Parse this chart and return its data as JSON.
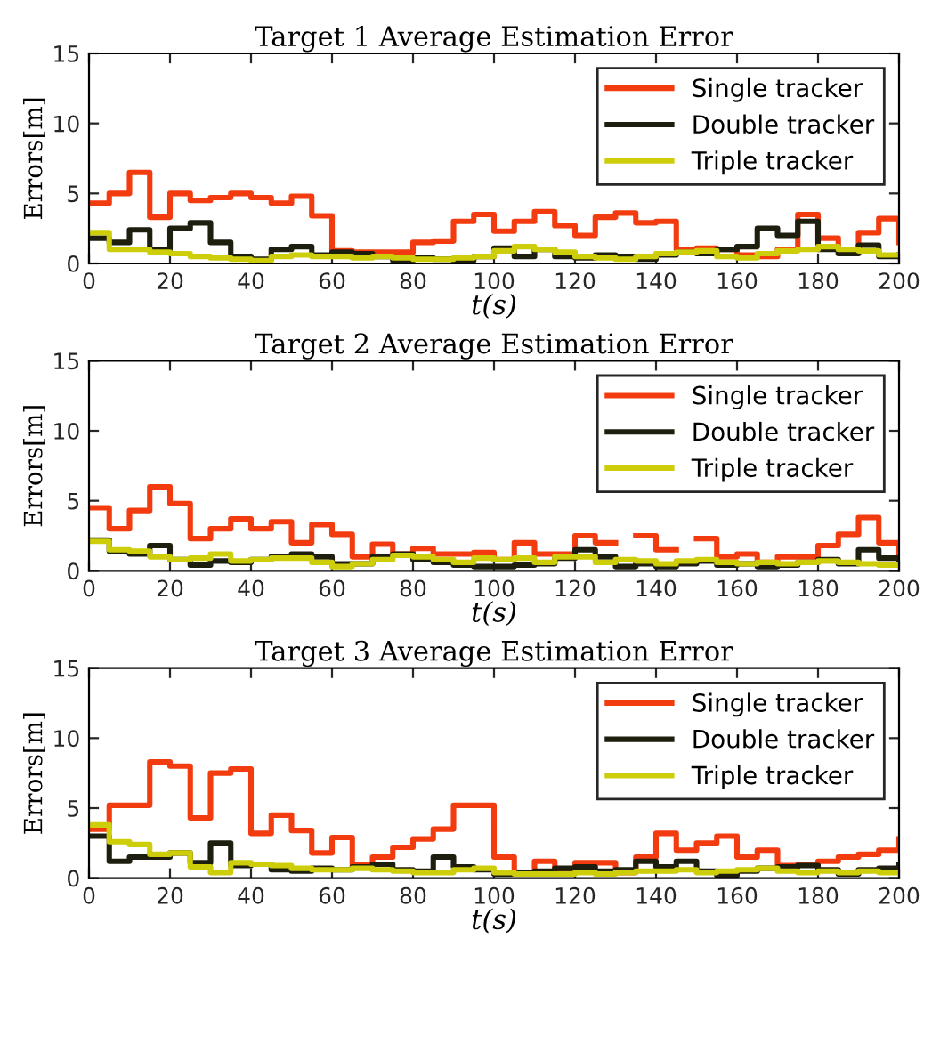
{
  "chart_data": [
    {
      "type": "step",
      "title": "Target 1 Average Estimation Error",
      "xlabel": "t(s)",
      "ylabel": "Errors[m]",
      "x": [
        0,
        5,
        10,
        15,
        20,
        25,
        30,
        35,
        40,
        45,
        50,
        55,
        60,
        65,
        70,
        75,
        80,
        85,
        90,
        95,
        100,
        105,
        110,
        115,
        120,
        125,
        130,
        135,
        140,
        145,
        150,
        155,
        160,
        165,
        170,
        175,
        180,
        185,
        190,
        195,
        200
      ],
      "xlim": [
        0,
        200
      ],
      "ylim": [
        0,
        15
      ],
      "xticks": [
        0,
        20,
        40,
        60,
        80,
        100,
        120,
        140,
        160,
        180,
        200
      ],
      "yticks": [
        0,
        5,
        10,
        15
      ],
      "legend": "top right",
      "grid": false,
      "series": [
        {
          "name": "Single tracker",
          "color": "#f23c0f",
          "values": [
            4.3,
            5.0,
            6.5,
            3.3,
            5.0,
            4.5,
            4.7,
            5.0,
            4.7,
            4.3,
            4.8,
            3.4,
            0.9,
            0.8,
            0.8,
            0.8,
            1.5,
            1.6,
            3.0,
            3.5,
            2.3,
            3.0,
            3.7,
            2.7,
            2.0,
            3.3,
            3.6,
            2.9,
            3.0,
            1.0,
            1.1,
            1.0,
            0.6,
            0.5,
            1.0,
            3.5,
            1.8,
            0.8,
            2.2,
            3.2,
            1.5
          ]
        },
        {
          "name": "Double tracker",
          "color": "#1e1e0f",
          "values": [
            1.8,
            1.5,
            2.4,
            1.0,
            2.5,
            2.9,
            1.5,
            0.5,
            0.3,
            1.0,
            1.2,
            0.6,
            0.8,
            0.7,
            0.5,
            0.2,
            0.4,
            0.3,
            0.2,
            0.5,
            1.1,
            0.5,
            1.0,
            0.5,
            0.4,
            0.6,
            0.5,
            0.3,
            0.6,
            0.8,
            0.7,
            1.0,
            1.2,
            2.5,
            2.0,
            3.0,
            1.0,
            0.7,
            1.3,
            0.5,
            0.6
          ]
        },
        {
          "name": "Triple tracker",
          "color": "#cdcd0a",
          "values": [
            2.2,
            1.0,
            1.0,
            0.8,
            0.7,
            0.5,
            0.4,
            0.3,
            0.2,
            0.5,
            0.6,
            0.5,
            0.5,
            0.4,
            0.5,
            0.4,
            0.3,
            0.3,
            0.4,
            0.5,
            0.9,
            1.2,
            1.0,
            0.8,
            0.5,
            0.4,
            0.3,
            0.5,
            0.7,
            0.8,
            0.9,
            0.5,
            0.4,
            0.7,
            0.9,
            1.0,
            1.2,
            1.0,
            0.9,
            0.6,
            0.6
          ]
        }
      ]
    },
    {
      "type": "step",
      "title": "Target 2 Average Estimation Error",
      "xlabel": "t(s)",
      "ylabel": "Errors[m]",
      "x": [
        0,
        5,
        10,
        15,
        20,
        25,
        30,
        35,
        40,
        45,
        50,
        55,
        60,
        65,
        70,
        75,
        80,
        85,
        90,
        95,
        100,
        105,
        110,
        115,
        120,
        125,
        130,
        135,
        140,
        145,
        150,
        155,
        160,
        165,
        170,
        175,
        180,
        185,
        190,
        195,
        200
      ],
      "xlim": [
        0,
        200
      ],
      "ylim": [
        0,
        15
      ],
      "xticks": [
        0,
        20,
        40,
        60,
        80,
        100,
        120,
        140,
        160,
        180,
        200
      ],
      "yticks": [
        0,
        5,
        10,
        15
      ],
      "legend": "top right",
      "grid": false,
      "series": [
        {
          "name": "Single tracker",
          "color": "#f23c0f",
          "values": [
            4.5,
            3.0,
            4.3,
            6.0,
            4.8,
            2.3,
            3.0,
            3.7,
            3.0,
            3.5,
            2.0,
            3.3,
            2.6,
            1.0,
            1.9,
            1.2,
            1.6,
            1.2,
            1.2,
            1.3,
            0.8,
            2.0,
            1.2,
            1.2,
            2.5,
            2.0,
            null,
            2.5,
            1.5,
            null,
            2.3,
            1.0,
            1.2,
            0.6,
            1.0,
            1.0,
            1.8,
            2.6,
            3.8,
            2.0,
            0.7
          ]
        },
        {
          "name": "Double tracker",
          "color": "#1e1e0f",
          "values": [
            2.2,
            1.4,
            1.2,
            1.8,
            0.8,
            0.4,
            0.7,
            0.6,
            0.8,
            1.0,
            1.2,
            1.0,
            0.5,
            0.5,
            1.0,
            1.2,
            0.8,
            0.6,
            0.4,
            0.3,
            0.3,
            0.4,
            0.5,
            0.9,
            1.5,
            1.0,
            0.3,
            0.5,
            0.3,
            0.5,
            0.7,
            0.4,
            0.5,
            0.3,
            0.4,
            0.6,
            0.8,
            0.5,
            1.5,
            0.9,
            0.5
          ]
        },
        {
          "name": "Triple tracker",
          "color": "#cdcd0a",
          "values": [
            2.1,
            1.5,
            1.4,
            1.0,
            0.8,
            0.9,
            1.2,
            0.7,
            0.8,
            0.9,
            0.9,
            0.6,
            0.3,
            0.5,
            0.8,
            1.1,
            1.0,
            0.8,
            0.6,
            0.9,
            0.8,
            0.9,
            0.6,
            1.0,
            1.0,
            0.6,
            0.8,
            0.7,
            0.5,
            0.7,
            0.8,
            0.6,
            0.5,
            0.6,
            0.5,
            0.6,
            0.7,
            0.6,
            0.5,
            0.4,
            0.4
          ]
        }
      ]
    },
    {
      "type": "step",
      "title": "Target 3 Average Estimation Error",
      "xlabel": "t(s)",
      "ylabel": "Errors[m]",
      "x": [
        0,
        5,
        10,
        15,
        20,
        25,
        30,
        35,
        40,
        45,
        50,
        55,
        60,
        65,
        70,
        75,
        80,
        85,
        90,
        95,
        100,
        105,
        110,
        115,
        120,
        125,
        130,
        135,
        140,
        145,
        150,
        155,
        160,
        165,
        170,
        175,
        180,
        185,
        190,
        195,
        200
      ],
      "xlim": [
        0,
        200
      ],
      "ylim": [
        0,
        15
      ],
      "xticks": [
        0,
        20,
        40,
        60,
        80,
        100,
        120,
        140,
        160,
        180,
        200
      ],
      "yticks": [
        0,
        5,
        10,
        15
      ],
      "legend": "top right",
      "grid": false,
      "series": [
        {
          "name": "Single tracker",
          "color": "#f23c0f",
          "values": [
            3.5,
            5.2,
            5.2,
            8.3,
            8.0,
            4.3,
            7.5,
            7.8,
            3.2,
            4.5,
            3.4,
            1.8,
            2.9,
            1.0,
            1.5,
            2.2,
            2.8,
            3.5,
            5.2,
            5.2,
            1.5,
            0.3,
            1.2,
            0.5,
            1.1,
            1.1,
            0.4,
            1.5,
            3.2,
            2.0,
            2.5,
            3.0,
            1.5,
            2.0,
            0.9,
            1.0,
            1.2,
            1.5,
            1.7,
            2.0,
            2.8
          ]
        },
        {
          "name": "Double tracker",
          "color": "#1e1e0f",
          "values": [
            3.0,
            1.2,
            1.5,
            1.5,
            1.8,
            1.1,
            2.5,
            0.9,
            1.0,
            0.6,
            0.5,
            0.7,
            0.6,
            0.8,
            1.0,
            0.6,
            0.5,
            1.5,
            0.8,
            0.6,
            0.3,
            0.4,
            0.5,
            0.7,
            0.8,
            0.5,
            0.6,
            1.2,
            0.8,
            1.2,
            0.5,
            0.2,
            0.5,
            0.7,
            0.8,
            0.9,
            0.6,
            0.3,
            0.6,
            0.7,
            1.0
          ]
        },
        {
          "name": "Triple tracker",
          "color": "#cdcd0a",
          "values": [
            3.8,
            2.6,
            2.4,
            1.7,
            1.8,
            0.8,
            0.4,
            1.1,
            1.0,
            0.9,
            0.7,
            0.6,
            0.6,
            0.7,
            0.6,
            0.5,
            0.4,
            0.4,
            0.6,
            0.7,
            0.4,
            0.3,
            0.3,
            0.3,
            0.4,
            0.3,
            0.4,
            0.5,
            0.5,
            0.6,
            0.4,
            0.5,
            0.6,
            0.7,
            0.5,
            0.4,
            0.5,
            0.4,
            0.5,
            0.4,
            0.4
          ]
        }
      ]
    }
  ]
}
